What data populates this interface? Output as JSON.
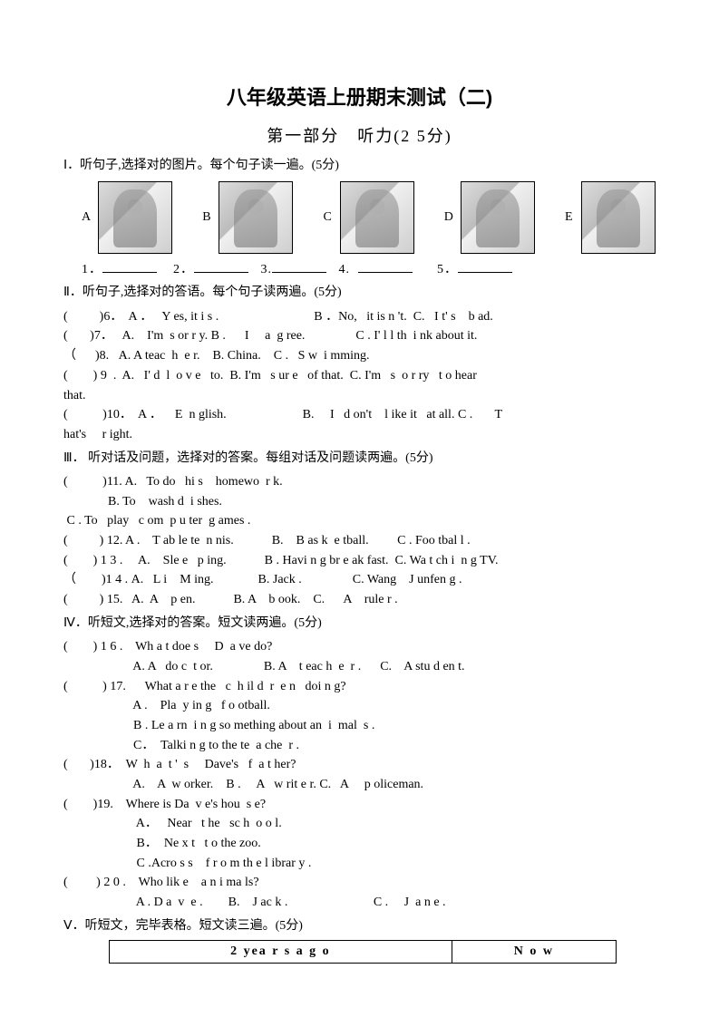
{
  "title": "八年级英语上册期末测试（二)",
  "subtitle": "第一部分　听力(2 5分)",
  "sec1": {
    "heading": "Ⅰ．听句子,选择对的图片。每个句子读一遍。(5分)",
    "labels": [
      "A",
      "B",
      "C",
      "D",
      "E"
    ],
    "blanks_line": "1．                      2．                 3.                 4.                             5．"
  },
  "sec2": {
    "heading": "Ⅱ．听句子,选择对的答语。每个句子读两遍。(5分)",
    "q6": "(          )6．  A ．   Y es, it i s .                              B ．No,   it is n 't.  ﻿C.   I t' s    b ad.",
    "q7": "(       )7．   A.    I'm  s or r y. ﻿B .      I     a  g ree. ﻿               C . I' l l th  i nk about it.",
    "q8": "（      )8.   A. A teac  h  e r.    ﻿B. China.   ﻿ C .   S w  i mming.",
    "q9": "(        ) 9  .  A.   I' d  l  o v e   to.  ﻿B. I'm   s ur e   of that.  ﻿C. I'm   s  o r ry   t o hear",
    "q9b": "that.",
    "q10": "(           )10．  A ．    E  n glish. ﻿                       B.     I   d on't    l ike it   at all.﻿ C .       T",
    "q10b": "hat's     r ight."
  },
  "sec3": {
    "heading": "Ⅲ．  听对话及问题，选择对的答案。每组对话及问题读两遍。(5分)",
    "q11a": "(           )11. A.   To do   hi s    homewo  r k.",
    "q11b": "              B. To    wash d  i shes.",
    "q11c": " ﻿C . To   play   c om  p u ter  g ames .",
    "q12": "(          ) 12. A .    T ab le te  n nis.            B.    B as k  e tball.       ﻿  C . Foo tbal l .",
    "q13": "(        ) 1 3 .     A.    Sle e   p ing.            B . Havi n g br e ak fast.﻿  C. Wa t ch i  n g TV.",
    "q14": "（        )1 4 . A.   L i    M ing. ﻿             B. Jack .   ﻿             C. Wang    J unfen g .",
    "q15": "(          ) 15.   A.  A    p en.   ﻿         B. A    b ook. ﻿   C.      A    rule r ."
  },
  "sec4": {
    "heading": "Ⅳ．听短文,选择对的答案。短文读两遍。(5分)",
    "q16": "(        ) 1 6 .    Wh a t doe s     D  a ve do?",
    "q16o": "                      A. A   do c  t or.         ﻿       B. A    t eac h  e  r .      ﻿C.    A stu d en t.",
    "q17": "(           ) 17.      What a r e the   c  h il d  r  e n   doi n g?",
    "q17a": "                      A .    Pla  y in g   f o otball.",
    "q17b": "                      B . Le a rn  i n g so mething about an  i  mal  s .",
    "q17c": "                      C．  Talki n g to the te  a che  r .",
    "q18": "(       )18．  W  h  a  t '  s     Dave's   f  a t her?",
    "q18o": "                      A.    A  w orker.   ﻿ B .     A   w rit e r. ﻿﻿C.   A     p oliceman.",
    "q19": "(        )19.    Where is Da  v e's hou  s e?",
    "q19a": "                       A．   Near   t he   sc h  o o l.",
    "q19b": "                       B．  Ne x t   t o the zoo.",
    "q19c": "                       C .Acro s s    f r o m th e l ibrar y .",
    "q20": "(         ) 2 0 .    Who lik e    a n i ma ls?",
    "q20o": "                       A . D a  v  e . ﻿       B.    J ac k .                          ﻿ C .     J  a n e ."
  },
  "sec5": {
    "heading": "Ⅴ．听短文，完毕表格。短文读三遍。(5分)",
    "th1": "2 yea r s   a  g o",
    "th2": "N o w"
  }
}
